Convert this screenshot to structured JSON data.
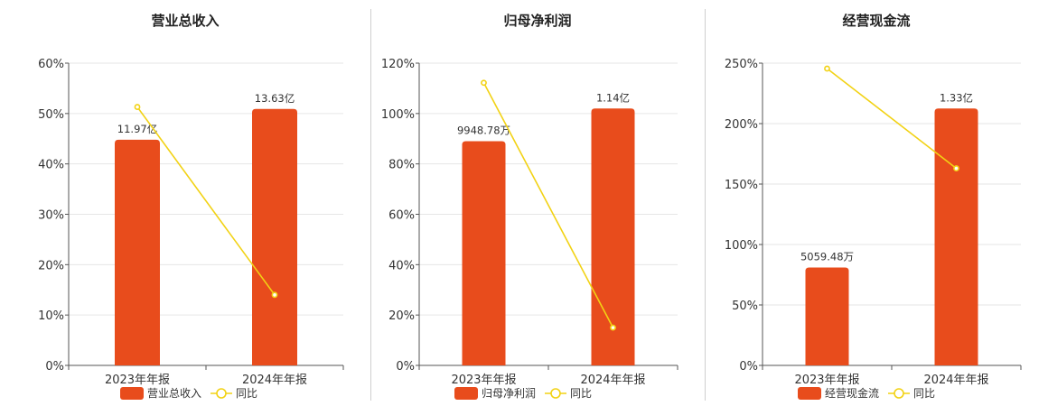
{
  "colors": {
    "bar": "#e84c1c",
    "line": "#f2d214",
    "axis": "#555555",
    "grid": "#e6e6e6"
  },
  "chart_data": [
    {
      "type": "bar",
      "title": "营业总收入",
      "categories": [
        "2023年年报",
        "2024年年报"
      ],
      "ylim": [
        0,
        60
      ],
      "yticks": [
        "0%",
        "10%",
        "20%",
        "30%",
        "40%",
        "50%",
        "60%"
      ],
      "series": [
        {
          "name": "营业总收入",
          "type": "bar",
          "values": [
            44.8,
            50.9
          ],
          "labels": [
            "11.97亿",
            "13.63亿"
          ]
        },
        {
          "name": "同比",
          "type": "line",
          "values": [
            51.3,
            14.0
          ]
        }
      ],
      "grid": true,
      "legend": "bottom"
    },
    {
      "type": "bar",
      "title": "归母净利润",
      "categories": [
        "2023年年报",
        "2024年年报"
      ],
      "ylim": [
        0,
        120
      ],
      "yticks": [
        "0%",
        "20%",
        "40%",
        "60%",
        "80%",
        "100%",
        "120%"
      ],
      "series": [
        {
          "name": "归母净利润",
          "type": "bar",
          "values": [
            89.0,
            102.0
          ],
          "labels": [
            "9948.78万",
            "1.14亿"
          ]
        },
        {
          "name": "同比",
          "type": "line",
          "values": [
            112.2,
            15.0
          ]
        }
      ],
      "grid": true,
      "legend": "bottom"
    },
    {
      "type": "bar",
      "title": "经营现金流",
      "categories": [
        "2023年年报",
        "2024年年报"
      ],
      "ylim": [
        0,
        250
      ],
      "yticks": [
        "0%",
        "50%",
        "100%",
        "150%",
        "200%",
        "250%"
      ],
      "series": [
        {
          "name": "经营现金流",
          "type": "bar",
          "values": [
            81.0,
            212.5
          ],
          "labels": [
            "5059.48万",
            "1.33亿"
          ]
        },
        {
          "name": "同比",
          "type": "line",
          "values": [
            245.5,
            163.0
          ]
        }
      ],
      "grid": true,
      "legend": "bottom"
    }
  ]
}
